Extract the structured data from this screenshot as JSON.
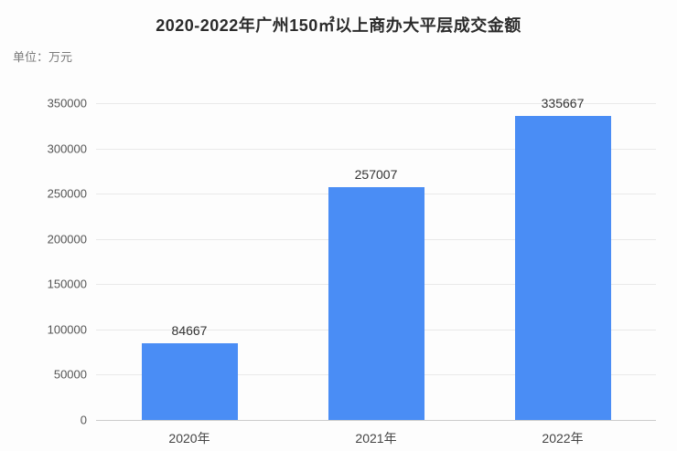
{
  "chart": {
    "title": "2020-2022年广州150㎡以上商办大平层成交金额",
    "unit_label": "单位：万元"
  },
  "chart_data": {
    "type": "bar",
    "title": "2020-2022年广州150㎡以上商办大平层成交金额",
    "unit": "万元",
    "categories": [
      "2020年",
      "2021年",
      "2022年"
    ],
    "values": [
      84667,
      257007,
      335667
    ],
    "value_labels": [
      "84667",
      "257007",
      "335667"
    ],
    "ytick_labels": [
      "0",
      "50000",
      "100000",
      "150000",
      "200000",
      "250000",
      "300000",
      "350000"
    ],
    "ylim": [
      0,
      350000
    ],
    "ytick_step": 50000,
    "xlabel": "",
    "ylabel": "",
    "bar_color": "#4a8df5",
    "grid": true,
    "legend_position": "none"
  }
}
